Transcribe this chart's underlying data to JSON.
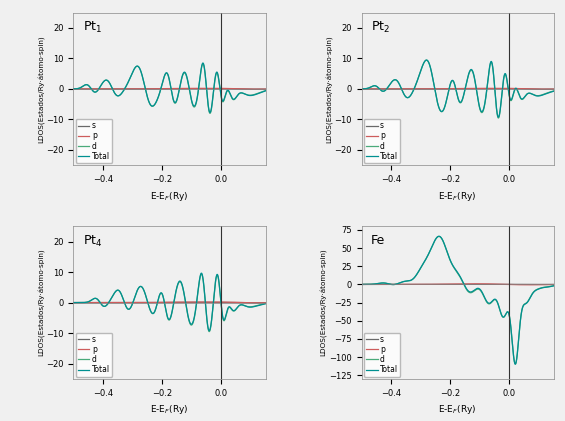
{
  "panels": [
    {
      "title": "Pt$_1$",
      "ylabel": "LDOS(Estados/Ry·átomo·spin)",
      "xlabel": "E-E$_F$(Ry)",
      "ylim": [
        -25,
        25
      ],
      "xlim": [
        -0.5,
        0.15
      ],
      "yticks": [
        -20,
        -10,
        0,
        10,
        20
      ],
      "xticks": [
        -0.4,
        -0.2,
        0.0
      ],
      "vline": 0.0,
      "shape": "Pt1"
    },
    {
      "title": "Pt$_2$",
      "ylabel": "LDOS(Estados/Ry·átomo·spin)",
      "xlabel": "E-E$_F$(Ry)",
      "ylim": [
        -25,
        25
      ],
      "xlim": [
        -0.5,
        0.15
      ],
      "yticks": [
        -20,
        -10,
        0,
        10,
        20
      ],
      "xticks": [
        -0.4,
        -0.2,
        0.0
      ],
      "vline": 0.0,
      "shape": "Pt2"
    },
    {
      "title": "Pt$_4$",
      "ylabel": "LDOS(Estados/Ry·átomo·spin)",
      "xlabel": "E-E$_F$(Ry)",
      "ylim": [
        -25,
        25
      ],
      "xlim": [
        -0.5,
        0.15
      ],
      "yticks": [
        -20,
        -10,
        0,
        10,
        20
      ],
      "xticks": [
        -0.4,
        -0.2,
        0.0
      ],
      "vline": 0.0,
      "shape": "Pt4"
    },
    {
      "title": "Fe",
      "ylabel": "LDOS(Estados/Ry·átomo·spin)",
      "xlabel": "E-E$_F$(Ry)",
      "ylim": [
        -130,
        80
      ],
      "xlim": [
        -0.5,
        0.15
      ],
      "yticks": [
        -125,
        -100,
        -75,
        -50,
        -25,
        0,
        25,
        50,
        75
      ],
      "xticks": [
        -0.4,
        -0.2,
        0.0
      ],
      "vline": 0.0,
      "shape": "Fe"
    }
  ],
  "colors": {
    "s": "#696969",
    "p": "#cd5c5c",
    "d": "#4aaa7a",
    "total": "#009090"
  },
  "background": "#f0f0f0"
}
